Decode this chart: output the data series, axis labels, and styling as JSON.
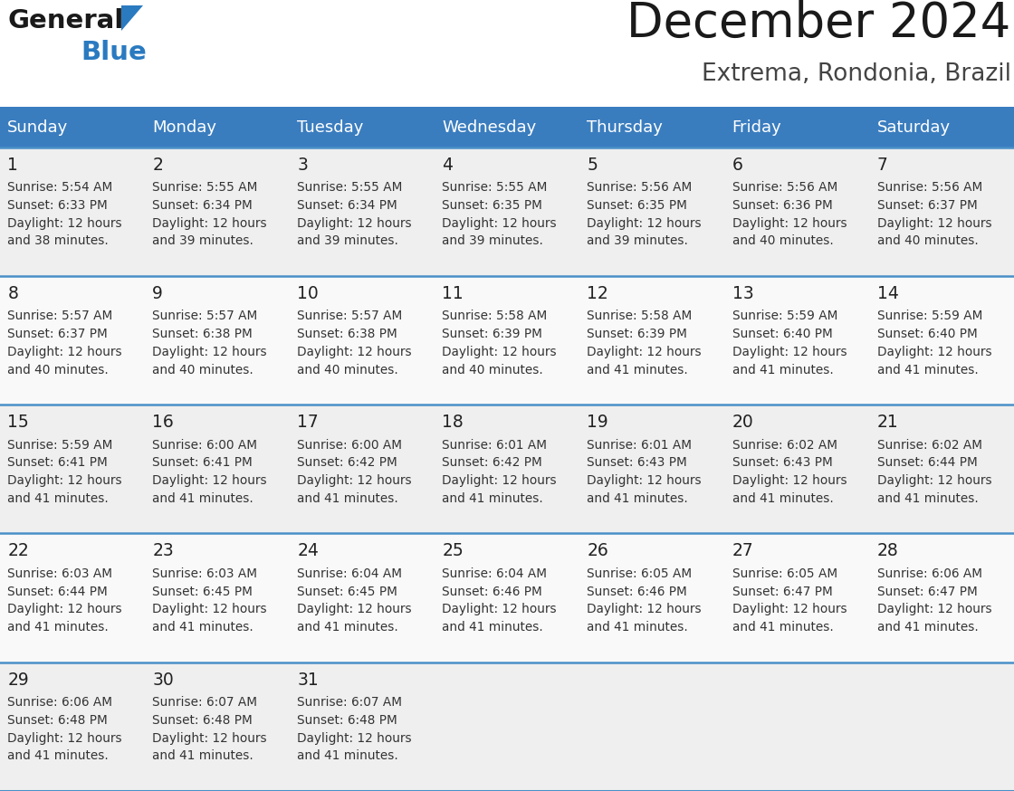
{
  "title": "December 2024",
  "subtitle": "Extrema, Rondonia, Brazil",
  "header_bg_color": "#3a7dbf",
  "header_text_color": "#ffffff",
  "row_line_color": "#4a90c8",
  "text_color": "#333333",
  "days_of_week": [
    "Sunday",
    "Monday",
    "Tuesday",
    "Wednesday",
    "Thursday",
    "Friday",
    "Saturday"
  ],
  "weeks": [
    [
      {
        "day": "1",
        "sunrise": "5:54 AM",
        "sunset": "6:33 PM",
        "daylight_extra": "38 minutes."
      },
      {
        "day": "2",
        "sunrise": "5:55 AM",
        "sunset": "6:34 PM",
        "daylight_extra": "39 minutes."
      },
      {
        "day": "3",
        "sunrise": "5:55 AM",
        "sunset": "6:34 PM",
        "daylight_extra": "39 minutes."
      },
      {
        "day": "4",
        "sunrise": "5:55 AM",
        "sunset": "6:35 PM",
        "daylight_extra": "39 minutes."
      },
      {
        "day": "5",
        "sunrise": "5:56 AM",
        "sunset": "6:35 PM",
        "daylight_extra": "39 minutes."
      },
      {
        "day": "6",
        "sunrise": "5:56 AM",
        "sunset": "6:36 PM",
        "daylight_extra": "40 minutes."
      },
      {
        "day": "7",
        "sunrise": "5:56 AM",
        "sunset": "6:37 PM",
        "daylight_extra": "40 minutes."
      }
    ],
    [
      {
        "day": "8",
        "sunrise": "5:57 AM",
        "sunset": "6:37 PM",
        "daylight_extra": "40 minutes."
      },
      {
        "day": "9",
        "sunrise": "5:57 AM",
        "sunset": "6:38 PM",
        "daylight_extra": "40 minutes."
      },
      {
        "day": "10",
        "sunrise": "5:57 AM",
        "sunset": "6:38 PM",
        "daylight_extra": "40 minutes."
      },
      {
        "day": "11",
        "sunrise": "5:58 AM",
        "sunset": "6:39 PM",
        "daylight_extra": "40 minutes."
      },
      {
        "day": "12",
        "sunrise": "5:58 AM",
        "sunset": "6:39 PM",
        "daylight_extra": "41 minutes."
      },
      {
        "day": "13",
        "sunrise": "5:59 AM",
        "sunset": "6:40 PM",
        "daylight_extra": "41 minutes."
      },
      {
        "day": "14",
        "sunrise": "5:59 AM",
        "sunset": "6:40 PM",
        "daylight_extra": "41 minutes."
      }
    ],
    [
      {
        "day": "15",
        "sunrise": "5:59 AM",
        "sunset": "6:41 PM",
        "daylight_extra": "41 minutes."
      },
      {
        "day": "16",
        "sunrise": "6:00 AM",
        "sunset": "6:41 PM",
        "daylight_extra": "41 minutes."
      },
      {
        "day": "17",
        "sunrise": "6:00 AM",
        "sunset": "6:42 PM",
        "daylight_extra": "41 minutes."
      },
      {
        "day": "18",
        "sunrise": "6:01 AM",
        "sunset": "6:42 PM",
        "daylight_extra": "41 minutes."
      },
      {
        "day": "19",
        "sunrise": "6:01 AM",
        "sunset": "6:43 PM",
        "daylight_extra": "41 minutes."
      },
      {
        "day": "20",
        "sunrise": "6:02 AM",
        "sunset": "6:43 PM",
        "daylight_extra": "41 minutes."
      },
      {
        "day": "21",
        "sunrise": "6:02 AM",
        "sunset": "6:44 PM",
        "daylight_extra": "41 minutes."
      }
    ],
    [
      {
        "day": "22",
        "sunrise": "6:03 AM",
        "sunset": "6:44 PM",
        "daylight_extra": "41 minutes."
      },
      {
        "day": "23",
        "sunrise": "6:03 AM",
        "sunset": "6:45 PM",
        "daylight_extra": "41 minutes."
      },
      {
        "day": "24",
        "sunrise": "6:04 AM",
        "sunset": "6:45 PM",
        "daylight_extra": "41 minutes."
      },
      {
        "day": "25",
        "sunrise": "6:04 AM",
        "sunset": "6:46 PM",
        "daylight_extra": "41 minutes."
      },
      {
        "day": "26",
        "sunrise": "6:05 AM",
        "sunset": "6:46 PM",
        "daylight_extra": "41 minutes."
      },
      {
        "day": "27",
        "sunrise": "6:05 AM",
        "sunset": "6:47 PM",
        "daylight_extra": "41 minutes."
      },
      {
        "day": "28",
        "sunrise": "6:06 AM",
        "sunset": "6:47 PM",
        "daylight_extra": "41 minutes."
      }
    ],
    [
      {
        "day": "29",
        "sunrise": "6:06 AM",
        "sunset": "6:48 PM",
        "daylight_extra": "41 minutes."
      },
      {
        "day": "30",
        "sunrise": "6:07 AM",
        "sunset": "6:48 PM",
        "daylight_extra": "41 minutes."
      },
      {
        "day": "31",
        "sunrise": "6:07 AM",
        "sunset": "6:48 PM",
        "daylight_extra": "41 minutes."
      },
      null,
      null,
      null,
      null
    ]
  ],
  "logo_general_color": "#1a1a1a",
  "logo_blue_color": "#2a7ac0",
  "logo_triangle_color": "#2a7ac0"
}
